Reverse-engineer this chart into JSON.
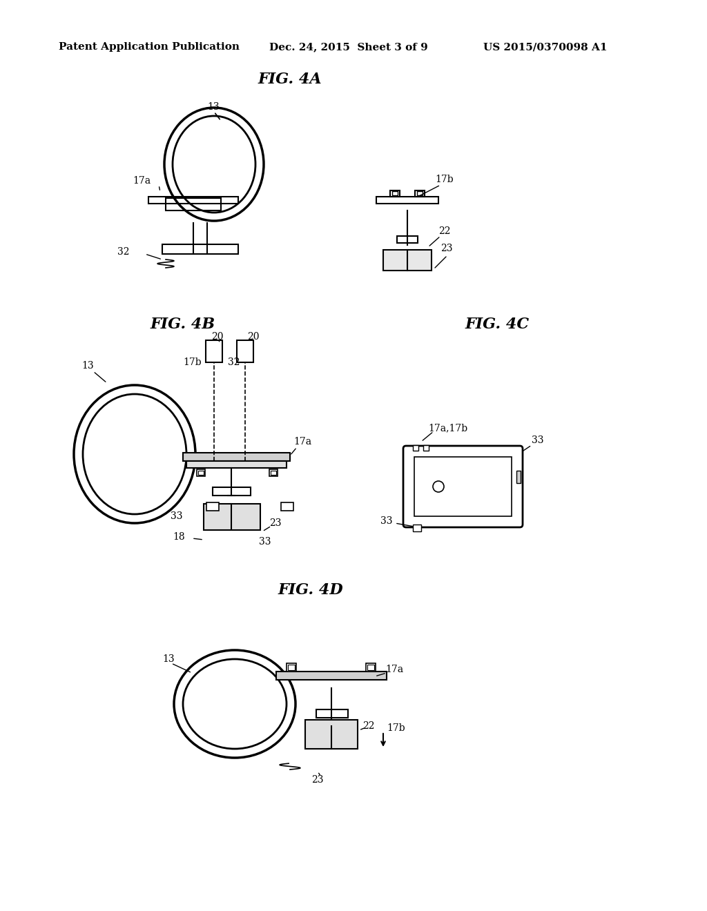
{
  "bg_color": "#ffffff",
  "line_color": "#000000",
  "header_left": "Patent Application Publication",
  "header_mid": "Dec. 24, 2015  Sheet 3 of 9",
  "header_right": "US 2015/0370098 A1",
  "fig_titles": [
    "FIG. 4A",
    "FIG. 4B",
    "FIG. 4C",
    "FIG. 4D"
  ],
  "font_size_header": 11,
  "font_size_title": 16,
  "font_size_label": 10
}
